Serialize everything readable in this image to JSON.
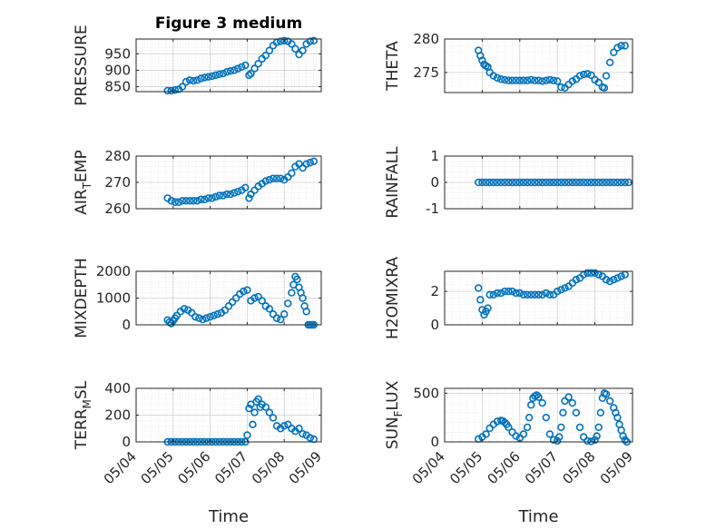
{
  "figure": {
    "title": "Figure 3 medium"
  },
  "colors": {
    "marker": "#0072BD",
    "axis": "#262626",
    "grid": "#dfdfdf"
  },
  "chart_data": [
    {
      "id": "pressure",
      "type": "scatter",
      "title": "Figure 3 medium",
      "ylabel": "PRESSURE",
      "xlabel": "",
      "ylim": [
        835,
        995
      ],
      "yticks": [
        850,
        900,
        950
      ],
      "xlim": [
        "05/04",
        "05/09"
      ],
      "xticks": [
        "05/04",
        "05/05",
        "05/06",
        "05/07",
        "05/08",
        "05/09"
      ],
      "xtick_labels_shown": false,
      "grid": "major and minor",
      "x": [
        4.85,
        4.95,
        5.05,
        5.15,
        5.25,
        5.35,
        5.45,
        5.55,
        5.65,
        5.75,
        5.85,
        5.95,
        6.05,
        6.15,
        6.25,
        6.35,
        6.45,
        6.55,
        6.65,
        6.75,
        6.85,
        6.95,
        7.05,
        7.1,
        7.2,
        7.3,
        7.4,
        7.5,
        7.6,
        7.7,
        7.8,
        7.9,
        8.0,
        8.1,
        8.2,
        8.3,
        8.4,
        8.5,
        8.6,
        8.7,
        8.8
      ],
      "y": [
        838,
        838,
        840,
        842,
        850,
        865,
        870,
        868,
        870,
        875,
        878,
        880,
        882,
        885,
        888,
        890,
        895,
        898,
        900,
        905,
        910,
        915,
        885,
        890,
        905,
        920,
        935,
        945,
        960,
        975,
        985,
        988,
        990,
        988,
        980,
        965,
        948,
        960,
        980,
        988,
        990
      ]
    },
    {
      "id": "theta",
      "type": "scatter",
      "ylabel": "THETA",
      "xlabel": "",
      "ylim": [
        272,
        280
      ],
      "yticks": [
        275,
        280
      ],
      "xlim": [
        "05/04",
        "05/09"
      ],
      "xticks": [
        "05/04",
        "05/05",
        "05/06",
        "05/07",
        "05/08",
        "05/09"
      ],
      "xtick_labels_shown": false,
      "grid": "major and minor",
      "x": [
        4.9,
        4.95,
        5.0,
        5.05,
        5.1,
        5.15,
        5.2,
        5.3,
        5.4,
        5.5,
        5.6,
        5.7,
        5.8,
        5.9,
        6.0,
        6.1,
        6.2,
        6.3,
        6.4,
        6.5,
        6.6,
        6.7,
        6.8,
        6.9,
        7.0,
        7.1,
        7.2,
        7.3,
        7.4,
        7.5,
        7.6,
        7.7,
        7.8,
        7.9,
        8.0,
        8.1,
        8.2,
        8.25,
        8.3,
        8.4,
        8.5,
        8.6,
        8.7,
        8.8
      ],
      "y": [
        278.3,
        277.5,
        276.8,
        276.2,
        276.0,
        275.8,
        275.0,
        274.5,
        274.2,
        274.0,
        273.9,
        273.8,
        273.8,
        273.8,
        273.8,
        273.8,
        273.8,
        273.9,
        273.8,
        273.8,
        273.7,
        273.8,
        273.9,
        273.8,
        273.7,
        272.8,
        272.7,
        273.2,
        273.7,
        274.0,
        274.5,
        274.7,
        274.8,
        274.6,
        273.9,
        273.5,
        272.8,
        272.7,
        274.5,
        276.5,
        278.0,
        278.7,
        279.0,
        279.0
      ]
    },
    {
      "id": "air_temp",
      "type": "scatter",
      "ylabel": "AIR_TEMP",
      "ylim": [
        260,
        280
      ],
      "yticks": [
        260,
        270,
        280
      ],
      "xlim": [
        "05/04",
        "05/09"
      ],
      "xticks": [
        "05/04",
        "05/05",
        "05/06",
        "05/07",
        "05/08",
        "05/09"
      ],
      "xtick_labels_shown": false,
      "grid": "major and minor",
      "x": [
        4.85,
        4.95,
        5.05,
        5.15,
        5.25,
        5.35,
        5.45,
        5.55,
        5.65,
        5.75,
        5.85,
        5.95,
        6.05,
        6.15,
        6.25,
        6.35,
        6.45,
        6.55,
        6.65,
        6.75,
        6.85,
        6.95,
        7.05,
        7.1,
        7.2,
        7.3,
        7.4,
        7.5,
        7.6,
        7.7,
        7.8,
        7.9,
        8.0,
        8.1,
        8.2,
        8.3,
        8.4,
        8.5,
        8.6,
        8.7,
        8.8
      ],
      "y": [
        264,
        263,
        262.5,
        262.5,
        263,
        263,
        263,
        263,
        263,
        263.5,
        263.5,
        264,
        264,
        264.5,
        265,
        265,
        265.5,
        265.5,
        266,
        266.5,
        267,
        268,
        264,
        265.5,
        267,
        268.5,
        269.5,
        270.5,
        271,
        271.5,
        271.5,
        271.5,
        271,
        272,
        273.5,
        276,
        277,
        275.5,
        277,
        277.5,
        278
      ]
    },
    {
      "id": "rainfall",
      "type": "scatter",
      "ylabel": "RAINFALL",
      "ylim": [
        -1,
        1
      ],
      "yticks": [
        -1,
        0,
        1
      ],
      "xlim": [
        "05/04",
        "05/09"
      ],
      "xticks": [
        "05/04",
        "05/05",
        "05/06",
        "05/07",
        "05/08",
        "05/09"
      ],
      "xtick_labels_shown": false,
      "grid": "major and minor",
      "x": [
        4.9,
        5.0,
        5.1,
        5.2,
        5.3,
        5.4,
        5.5,
        5.6,
        5.7,
        5.8,
        5.9,
        6.0,
        6.1,
        6.2,
        6.3,
        6.4,
        6.5,
        6.6,
        6.7,
        6.8,
        6.9,
        7.0,
        7.1,
        7.2,
        7.3,
        7.4,
        7.5,
        7.6,
        7.7,
        7.8,
        7.9,
        8.0,
        8.1,
        8.2,
        8.3,
        8.4,
        8.5,
        8.6,
        8.7,
        8.8,
        8.9
      ],
      "y": [
        0,
        0,
        0,
        0,
        0,
        0,
        0,
        0,
        0,
        0,
        0,
        0,
        0,
        0,
        0,
        0,
        0,
        0,
        0,
        0,
        0,
        0,
        0,
        0,
        0,
        0,
        0,
        0,
        0,
        0,
        0,
        0,
        0,
        0,
        0,
        0,
        0,
        0,
        0,
        0,
        0
      ]
    },
    {
      "id": "mixdepth",
      "type": "scatter",
      "ylabel": "MIXDEPTH",
      "ylim": [
        0,
        2000
      ],
      "yticks": [
        0,
        1000,
        2000
      ],
      "xlim": [
        "05/04",
        "05/09"
      ],
      "xticks": [
        "05/04",
        "05/05",
        "05/06",
        "05/07",
        "05/08",
        "05/09"
      ],
      "xtick_labels_shown": false,
      "grid": "major and minor",
      "x": [
        4.85,
        4.9,
        4.95,
        5.0,
        5.05,
        5.1,
        5.2,
        5.3,
        5.4,
        5.5,
        5.6,
        5.7,
        5.8,
        5.9,
        6.0,
        6.1,
        6.2,
        6.3,
        6.4,
        6.5,
        6.6,
        6.7,
        6.8,
        6.9,
        7.0,
        7.1,
        7.2,
        7.3,
        7.4,
        7.5,
        7.6,
        7.7,
        7.8,
        7.9,
        8.0,
        8.1,
        8.2,
        8.25,
        8.3,
        8.35,
        8.4,
        8.45,
        8.5,
        8.55,
        8.6,
        8.65,
        8.7,
        8.75,
        8.8
      ],
      "y": [
        180,
        100,
        50,
        150,
        250,
        350,
        500,
        600,
        550,
        450,
        300,
        250,
        200,
        250,
        300,
        350,
        400,
        450,
        550,
        700,
        850,
        1000,
        1150,
        1250,
        1300,
        900,
        1000,
        1050,
        900,
        700,
        600,
        400,
        250,
        200,
        400,
        800,
        1200,
        1500,
        1800,
        1700,
        1400,
        1200,
        1000,
        700,
        500,
        0,
        0,
        0,
        0
      ]
    },
    {
      "id": "h2omixra",
      "type": "scatter",
      "ylabel": "H2OMIXRA",
      "ylim": [
        0,
        3.2
      ],
      "yticks": [
        0,
        2
      ],
      "xlim": [
        "05/04",
        "05/09"
      ],
      "xticks": [
        "05/04",
        "05/05",
        "05/06",
        "05/07",
        "05/08",
        "05/09"
      ],
      "xtick_labels_shown": false,
      "grid": "major and minor",
      "x": [
        4.9,
        4.95,
        5.0,
        5.05,
        5.1,
        5.15,
        5.2,
        5.3,
        5.4,
        5.5,
        5.6,
        5.7,
        5.8,
        5.9,
        6.0,
        6.1,
        6.2,
        6.3,
        6.4,
        6.5,
        6.6,
        6.7,
        6.8,
        6.9,
        7.0,
        7.1,
        7.2,
        7.3,
        7.4,
        7.5,
        7.6,
        7.7,
        7.8,
        7.9,
        8.0,
        8.1,
        8.2,
        8.3,
        8.4,
        8.5,
        8.6,
        8.7,
        8.8
      ],
      "y": [
        2.2,
        1.5,
        0.9,
        0.6,
        0.8,
        1.0,
        1.8,
        1.8,
        1.9,
        1.9,
        2.0,
        2.0,
        2.0,
        1.9,
        1.9,
        1.8,
        1.8,
        1.8,
        1.8,
        1.8,
        1.8,
        1.9,
        1.8,
        1.8,
        2.0,
        2.1,
        2.2,
        2.3,
        2.5,
        2.7,
        2.8,
        3.0,
        3.1,
        3.1,
        3.1,
        3.0,
        2.9,
        2.7,
        2.6,
        2.7,
        2.8,
        2.9,
        3.0
      ]
    },
    {
      "id": "terr_msl",
      "type": "scatter",
      "ylabel": "TERR_MSL",
      "ylim": [
        0,
        400
      ],
      "yticks": [
        0,
        200,
        400
      ],
      "xlim": [
        "05/04",
        "05/09"
      ],
      "xticks": [
        "05/04",
        "05/05",
        "05/06",
        "05/07",
        "05/08",
        "05/09"
      ],
      "xtick_labels_shown": true,
      "xlabel": "Time",
      "grid": "major and minor",
      "x": [
        4.85,
        4.95,
        5.05,
        5.15,
        5.25,
        5.35,
        5.45,
        5.55,
        5.65,
        5.75,
        5.85,
        5.95,
        6.05,
        6.15,
        6.25,
        6.35,
        6.45,
        6.55,
        6.65,
        6.75,
        6.85,
        6.95,
        7.0,
        7.05,
        7.1,
        7.15,
        7.2,
        7.25,
        7.3,
        7.35,
        7.4,
        7.5,
        7.6,
        7.7,
        7.8,
        7.9,
        8.0,
        8.1,
        8.2,
        8.3,
        8.4,
        8.5,
        8.6,
        8.7,
        8.8
      ],
      "y": [
        0,
        0,
        0,
        0,
        0,
        0,
        0,
        0,
        0,
        0,
        0,
        0,
        0,
        0,
        0,
        0,
        0,
        0,
        0,
        0,
        0,
        0,
        50,
        250,
        280,
        130,
        220,
        300,
        320,
        260,
        280,
        260,
        220,
        180,
        120,
        100,
        120,
        130,
        100,
        80,
        100,
        60,
        50,
        30,
        20
      ]
    },
    {
      "id": "sun_flux",
      "type": "scatter",
      "ylabel": "SUN_FLUX",
      "ylim": [
        0,
        550
      ],
      "yticks": [
        0,
        500
      ],
      "xlim": [
        "05/04",
        "05/09"
      ],
      "xticks": [
        "05/04",
        "05/05",
        "05/06",
        "05/07",
        "05/08",
        "05/09"
      ],
      "xtick_labels_shown": true,
      "xlabel": "Time",
      "grid": "major and minor",
      "x": [
        4.9,
        5.0,
        5.1,
        5.2,
        5.3,
        5.4,
        5.5,
        5.55,
        5.6,
        5.65,
        5.7,
        5.8,
        5.9,
        6.0,
        6.1,
        6.2,
        6.25,
        6.3,
        6.35,
        6.4,
        6.45,
        6.5,
        6.6,
        6.7,
        6.8,
        6.9,
        7.0,
        7.05,
        7.1,
        7.15,
        7.2,
        7.3,
        7.4,
        7.5,
        7.6,
        7.7,
        7.8,
        7.9,
        8.0,
        8.05,
        8.1,
        8.15,
        8.2,
        8.25,
        8.3,
        8.4,
        8.5,
        8.55,
        8.6,
        8.65,
        8.7,
        8.75,
        8.8,
        8.85
      ],
      "y": [
        30,
        50,
        80,
        140,
        180,
        210,
        220,
        215,
        200,
        180,
        150,
        100,
        60,
        40,
        80,
        150,
        250,
        380,
        450,
        470,
        480,
        460,
        400,
        250,
        80,
        20,
        10,
        50,
        150,
        300,
        420,
        460,
        400,
        300,
        150,
        50,
        10,
        5,
        20,
        60,
        150,
        300,
        450,
        500,
        490,
        420,
        350,
        300,
        250,
        180,
        120,
        60,
        20,
        0
      ]
    }
  ]
}
